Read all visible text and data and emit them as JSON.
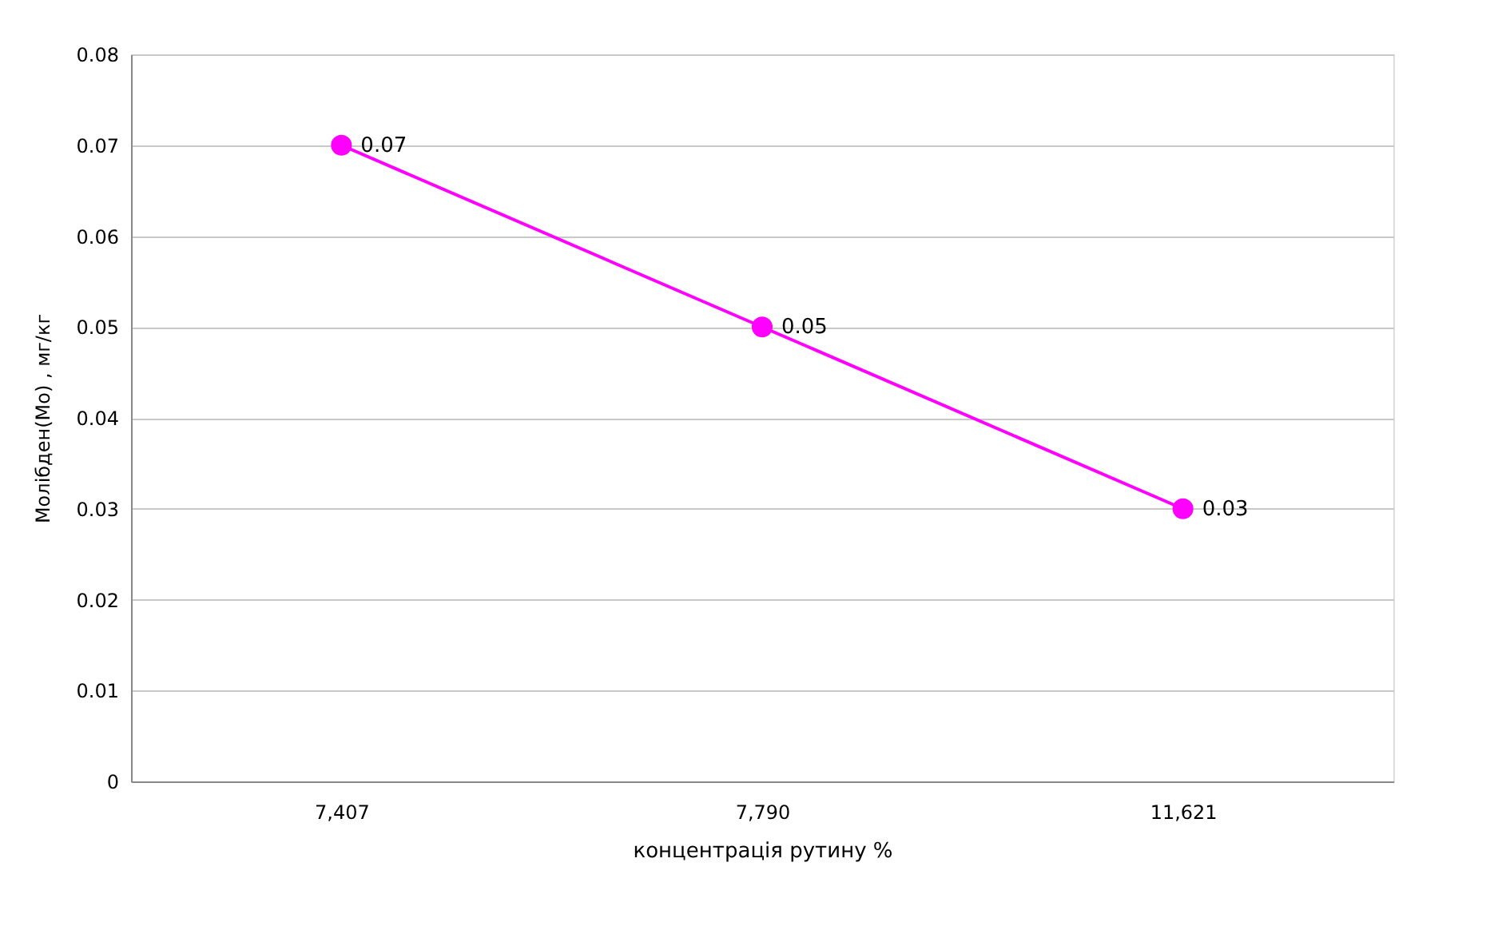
{
  "chart_data": {
    "type": "line",
    "xlabel": "концентрація рутину %",
    "ylabel": "Молібден(Мо) , мг/кг",
    "categories": [
      "7,407",
      "7,790",
      "11,621"
    ],
    "series": [
      {
        "color": "#ff00ff",
        "values": [
          0.07,
          0.05,
          0.03
        ]
      }
    ],
    "ylim": [
      0,
      0.08
    ],
    "yticks": [
      0,
      0.01,
      0.02,
      0.03,
      0.04,
      0.05,
      0.06,
      0.07,
      0.08
    ],
    "grid": "y",
    "marker": "circle",
    "data_labels": true,
    "line_style": "solid"
  }
}
